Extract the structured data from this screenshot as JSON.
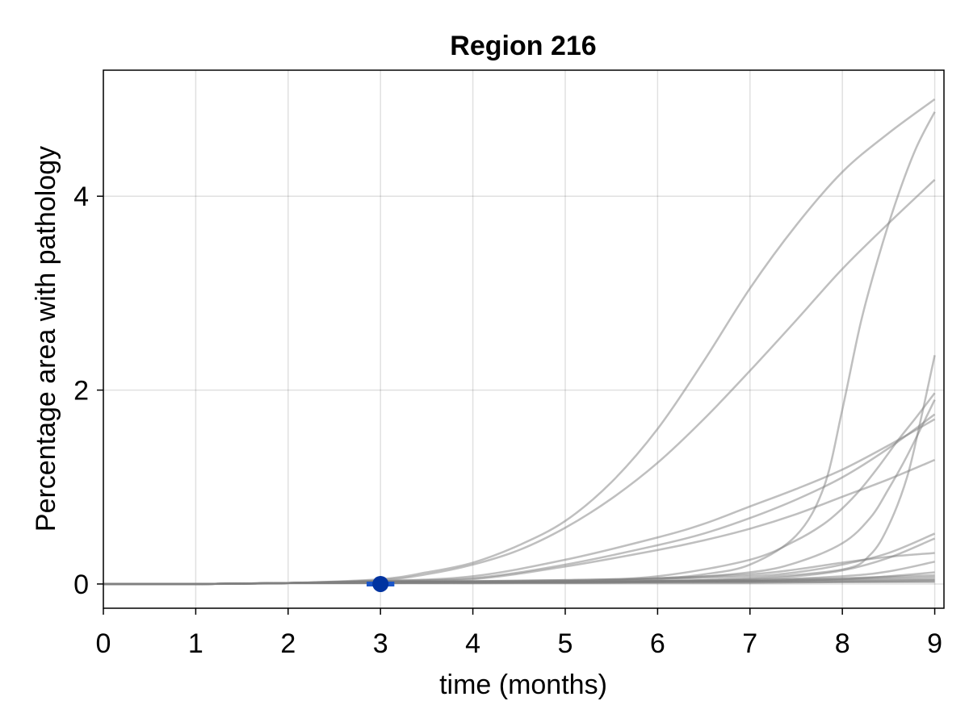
{
  "chart_data": {
    "type": "line",
    "title": "Region 216",
    "xlabel": "time (months)",
    "ylabel": "Percentage area with pathology",
    "xlim": [
      0,
      9.1
    ],
    "ylim": [
      -0.25,
      5.3
    ],
    "xticks": [
      0,
      1,
      2,
      3,
      4,
      5,
      6,
      7,
      8,
      9
    ],
    "yticks": [
      0,
      2,
      4
    ],
    "grid": true,
    "colors": {
      "lines": "#808080",
      "point": "#0033a0",
      "errorbar": "#1a55c8"
    },
    "series": [
      {
        "x": [
          0,
          1,
          2,
          3,
          3.5,
          4,
          4.5,
          5,
          5.5,
          6,
          6.5,
          7,
          7.5,
          8,
          8.5,
          9
        ],
        "y": [
          0,
          0,
          0.01,
          0.05,
          0.12,
          0.22,
          0.4,
          0.65,
          1.05,
          1.6,
          2.3,
          3.05,
          3.7,
          4.25,
          4.65,
          5.0
        ]
      },
      {
        "x": [
          0,
          1,
          2,
          3,
          3.5,
          4,
          4.5,
          5,
          5.5,
          6,
          6.5,
          7,
          7.5,
          8,
          8.5,
          9
        ],
        "y": [
          0,
          0,
          0.01,
          0.04,
          0.1,
          0.2,
          0.35,
          0.58,
          0.88,
          1.25,
          1.7,
          2.2,
          2.72,
          3.25,
          3.72,
          4.17
        ]
      },
      {
        "x": [
          0,
          1,
          2,
          3,
          5,
          6,
          6.5,
          7,
          7.5,
          7.8,
          8,
          8.2,
          8.4,
          8.6,
          8.8,
          9
        ],
        "y": [
          0,
          0,
          0.01,
          0.02,
          0.04,
          0.06,
          0.1,
          0.2,
          0.5,
          1.0,
          1.8,
          2.7,
          3.4,
          4.0,
          4.5,
          4.87
        ]
      },
      {
        "x": [
          0,
          1,
          2,
          3,
          4,
          5,
          6,
          6.5,
          7,
          7.5,
          8,
          8.5,
          9
        ],
        "y": [
          0,
          0,
          0.01,
          0.03,
          0.08,
          0.25,
          0.48,
          0.62,
          0.8,
          0.98,
          1.18,
          1.43,
          1.7
        ]
      },
      {
        "x": [
          0,
          1,
          2,
          3,
          4,
          5,
          6,
          6.5,
          7,
          7.5,
          8,
          8.5,
          9
        ],
        "y": [
          0,
          0,
          0.01,
          0.03,
          0.06,
          0.2,
          0.4,
          0.52,
          0.68,
          0.87,
          1.1,
          1.4,
          1.75
        ]
      },
      {
        "x": [
          0,
          1,
          2,
          3,
          4,
          5,
          6,
          6.5,
          7,
          7.5,
          8,
          8.5,
          9
        ],
        "y": [
          0,
          0,
          0.01,
          0.03,
          0.05,
          0.18,
          0.35,
          0.45,
          0.57,
          0.72,
          0.9,
          1.08,
          1.28
        ]
      },
      {
        "x": [
          0,
          1,
          2,
          3,
          5,
          6,
          7,
          7.5,
          7.8,
          8,
          8.2,
          8.4,
          8.6,
          8.8,
          9
        ],
        "y": [
          0,
          0,
          0.01,
          0.02,
          0.04,
          0.08,
          0.25,
          0.45,
          0.62,
          0.78,
          0.98,
          1.22,
          1.48,
          1.72,
          1.97
        ]
      },
      {
        "x": [
          0,
          1,
          2,
          3,
          5,
          6,
          7,
          7.5,
          8,
          8.3,
          8.5,
          8.7,
          9
        ],
        "y": [
          0,
          0,
          0.01,
          0.02,
          0.03,
          0.05,
          0.12,
          0.22,
          0.42,
          0.68,
          0.98,
          1.32,
          1.9
        ]
      },
      {
        "x": [
          0,
          1,
          2,
          3,
          5,
          6,
          7,
          8,
          8.3,
          8.5,
          8.7,
          8.85,
          9
        ],
        "y": [
          0,
          0,
          0.01,
          0.02,
          0.02,
          0.03,
          0.06,
          0.15,
          0.3,
          0.6,
          1.1,
          1.7,
          2.36
        ]
      },
      {
        "x": [
          0,
          1,
          2,
          3,
          5,
          6,
          7,
          7.5,
          8,
          8.5,
          9
        ],
        "y": [
          0,
          0,
          0.01,
          0.02,
          0.03,
          0.06,
          0.1,
          0.15,
          0.22,
          0.28,
          0.32
        ]
      },
      {
        "x": [
          0,
          1,
          2,
          3,
          5,
          6,
          7,
          7.5,
          8,
          8.5,
          9
        ],
        "y": [
          0,
          0,
          0.01,
          0.02,
          0.03,
          0.05,
          0.08,
          0.12,
          0.2,
          0.32,
          0.52
        ]
      },
      {
        "x": [
          0,
          1,
          2,
          3,
          5,
          6,
          7,
          7.5,
          8,
          8.5,
          9
        ],
        "y": [
          0,
          0,
          0.01,
          0.02,
          0.02,
          0.03,
          0.05,
          0.08,
          0.14,
          0.27,
          0.47
        ]
      },
      {
        "x": [
          0,
          1,
          2,
          3,
          5,
          6,
          7,
          8,
          8.5,
          9
        ],
        "y": [
          0,
          0,
          0.01,
          0.02,
          0.02,
          0.03,
          0.04,
          0.08,
          0.13,
          0.23
        ]
      },
      {
        "x": [
          0,
          1,
          2,
          3,
          5,
          6,
          7,
          8,
          8.5,
          9
        ],
        "y": [
          0,
          0,
          0.01,
          0.02,
          0.02,
          0.02,
          0.03,
          0.05,
          0.08,
          0.12
        ]
      },
      {
        "x": [
          0,
          1,
          2,
          3,
          5,
          6,
          7,
          8,
          9
        ],
        "y": [
          0,
          0,
          0.01,
          0.02,
          0.02,
          0.03,
          0.04,
          0.06,
          0.09
        ]
      },
      {
        "x": [
          0,
          1,
          2,
          3,
          5,
          6,
          7,
          8,
          9
        ],
        "y": [
          0,
          0,
          0.01,
          0.02,
          0.02,
          0.03,
          0.03,
          0.05,
          0.07
        ]
      },
      {
        "x": [
          0,
          1,
          2,
          3,
          5,
          6,
          7,
          8,
          9
        ],
        "y": [
          0,
          0,
          0.01,
          0.01,
          0.02,
          0.02,
          0.03,
          0.04,
          0.05
        ]
      },
      {
        "x": [
          0,
          1,
          2,
          3,
          5,
          6,
          7,
          8,
          9
        ],
        "y": [
          0,
          0,
          0.01,
          0.01,
          0.02,
          0.02,
          0.02,
          0.03,
          0.04
        ]
      },
      {
        "x": [
          0,
          1,
          2,
          3,
          5,
          6,
          7,
          8,
          9
        ],
        "y": [
          0,
          0,
          0.01,
          0.01,
          0.01,
          0.02,
          0.02,
          0.02,
          0.03
        ]
      },
      {
        "x": [
          0,
          1,
          2,
          3,
          5,
          6,
          7,
          8,
          9
        ],
        "y": [
          0,
          0,
          0.01,
          0.01,
          0.01,
          0.01,
          0.01,
          0.02,
          0.02
        ]
      }
    ],
    "observation": {
      "x": 3,
      "y": 0,
      "x_err": 0.15
    }
  }
}
